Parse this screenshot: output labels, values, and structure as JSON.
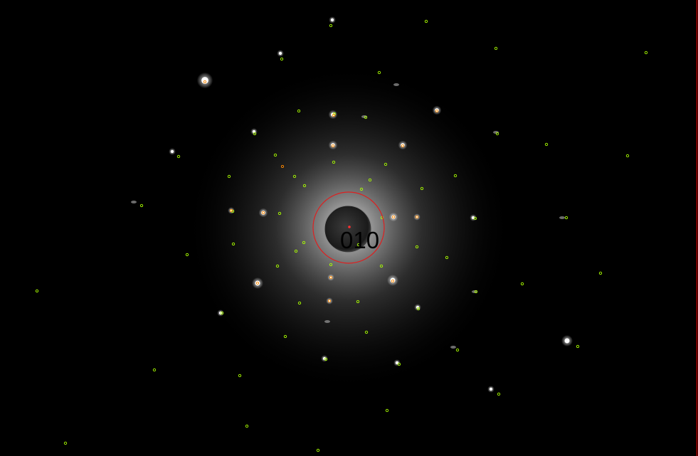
{
  "pattern": {
    "zone_axis_label": "010",
    "colors": {
      "background": "#000000",
      "predicted_spot": "#aaff00",
      "measured_spot": "#ff8800",
      "center_marker": "#ff3030",
      "beam_stop_circle": "#dd2020",
      "halo_core": "#d8d8d8",
      "beam_stop": "#303030"
    }
  }
}
